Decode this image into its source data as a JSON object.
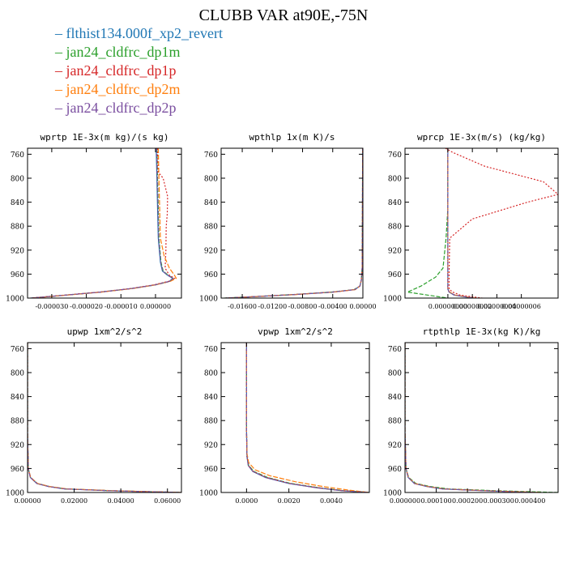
{
  "title": "CLUBB VAR at90E,-75N",
  "legend": [
    {
      "name": "flthist134.000f_xp2_revert",
      "color": "#1f77b4"
    },
    {
      "name": "jan24_cldfrc_dp1m",
      "color": "#2ca02c"
    },
    {
      "name": "jan24_cldfrc_dp1p",
      "color": "#d62728"
    },
    {
      "name": "jan24_cldfrc_dp2m",
      "color": "#ff7f0e"
    },
    {
      "name": "jan24_cldfrc_dp2p",
      "color": "#7b4fa0"
    }
  ],
  "chart_data": [
    {
      "type": "line",
      "title": "wprtp  1E-3x(m kg)/(s kg)",
      "xlim": [
        -3.7e-05,
        7.5e-06
      ],
      "ylim": [
        750,
        1000
      ],
      "y_inverted": true,
      "xticks": [
        -3e-05,
        -2e-05,
        -1e-05,
        0.0
      ],
      "xtick_labels": [
        "-0.000030",
        "-0.000020",
        "-0.000010",
        "0.000000"
      ],
      "yticks": [
        760,
        800,
        840,
        880,
        920,
        960,
        1000
      ],
      "series": [
        {
          "y": [
            750,
            800,
            850,
            900,
            940,
            955,
            962,
            967,
            972,
            978,
            984,
            990,
            995,
            1000
          ],
          "x": [
            2e-07,
            4e-07,
            6e-07,
            8e-07,
            1.4e-06,
            2e-06,
            3.5e-06,
            5e-06,
            4e-06,
            -2e-07,
            -7e-06,
            -1.6e-05,
            -2.6e-05,
            -3.6e-05
          ]
        },
        {
          "y": [
            750,
            800,
            850,
            900,
            940,
            955,
            962,
            967,
            972,
            978,
            984,
            990,
            995,
            1000
          ],
          "x": [
            4e-07,
            6e-07,
            8e-07,
            1e-06,
            1.6e-06,
            2.2e-06,
            3.7e-06,
            5.2e-06,
            4.2e-06,
            1e-07,
            -6.8e-06,
            -1.58e-05,
            -2.58e-05,
            -3.58e-05
          ]
        },
        {
          "y": [
            750,
            790,
            800,
            830,
            860,
            880,
            920,
            950,
            962,
            967,
            972,
            978,
            984,
            990,
            995,
            1000
          ],
          "x": [
            6e-07,
            8e-07,
            2.2e-06,
            3.5e-06,
            3.4e-06,
            3.1e-06,
            3e-06,
            2.8e-06,
            4e-06,
            5.5e-06,
            3.8e-06,
            -5e-07,
            -7.2e-06,
            -1.62e-05,
            -2.62e-05,
            -3.62e-05
          ]
        },
        {
          "y": [
            750,
            800,
            850,
            900,
            930,
            950,
            962,
            967,
            972,
            978,
            984,
            990,
            995,
            1000
          ],
          "x": [
            8e-07,
            1e-06,
            1.2e-06,
            1.4e-06,
            2.5e-06,
            4e-06,
            5.5e-06,
            6e-06,
            4.3e-06,
            0.0,
            -6.6e-06,
            -1.56e-05,
            -2.56e-05,
            -3.56e-05
          ]
        },
        {
          "y": [
            750,
            800,
            850,
            900,
            940,
            955,
            962,
            967,
            972,
            978,
            984,
            990,
            995,
            1000
          ],
          "x": [
            3e-07,
            5e-07,
            7e-07,
            9e-07,
            1.5e-06,
            2.1e-06,
            3.6e-06,
            5.1e-06,
            4.1e-06,
            -1e-07,
            -6.9e-06,
            -1.59e-05,
            -2.59e-05,
            -3.59e-05
          ]
        }
      ]
    },
    {
      "type": "line",
      "title": "wpthlp  1x(m K)/s",
      "xlim": [
        -0.0188,
        0.0
      ],
      "ylim": [
        750,
        1000
      ],
      "y_inverted": true,
      "xticks": [
        -0.016,
        -0.012,
        -0.008,
        -0.004,
        0.0
      ],
      "xtick_labels": [
        "-0.01600",
        "-0.01200",
        "-0.00800",
        "-0.00400",
        "0.00000"
      ],
      "yticks": [
        760,
        800,
        840,
        880,
        920,
        960,
        1000
      ],
      "series": [
        {
          "y": [
            750,
            900,
            950,
            970,
            980,
            986,
            990,
            994,
            997,
            1000
          ],
          "x": [
            -3e-05,
            -6e-05,
            -0.0001,
            -0.0002,
            -0.0004,
            -0.0011,
            -0.004,
            -0.009,
            -0.0135,
            -0.0182
          ]
        },
        {
          "y": [
            750,
            900,
            950,
            970,
            980,
            986,
            990,
            994,
            997,
            1000
          ],
          "x": [
            -3e-05,
            -6e-05,
            -0.0001,
            -0.0002,
            -0.0004,
            -0.0012,
            -0.0042,
            -0.0092,
            -0.0137,
            -0.0184
          ]
        },
        {
          "y": [
            750,
            900,
            950,
            970,
            980,
            986,
            990,
            994,
            997,
            1000
          ],
          "x": [
            -3e-05,
            -6e-05,
            -0.0001,
            -0.0002,
            -0.0004,
            -0.0011,
            -0.0041,
            -0.0091,
            -0.0136,
            -0.0183
          ]
        },
        {
          "y": [
            750,
            900,
            950,
            970,
            980,
            986,
            990,
            994,
            997,
            1000
          ],
          "x": [
            -3e-05,
            -6e-05,
            -0.0001,
            -0.0002,
            -0.0004,
            -0.001,
            -0.0039,
            -0.0089,
            -0.0134,
            -0.0181
          ]
        },
        {
          "y": [
            750,
            900,
            950,
            970,
            980,
            986,
            990,
            994,
            997,
            1000
          ],
          "x": [
            -3e-05,
            -6e-05,
            -0.0001,
            -0.0002,
            -0.0004,
            -0.0011,
            -0.004,
            -0.009,
            -0.0135,
            -0.0182
          ]
        }
      ]
    },
    {
      "type": "line",
      "title": "wprcp  1E-3x(m/s) (kg/kg)",
      "xlim": [
        -3.5e-08,
        9e-08
      ],
      "ylim": [
        750,
        1000
      ],
      "y_inverted": true,
      "xticks": [
        0.0,
        2e-08,
        4e-08,
        6e-08
      ],
      "xtick_labels": [
        "0.00000000",
        "0.00000002",
        "0.00000004",
        "0.00000006"
      ],
      "yticks": [
        760,
        800,
        840,
        880,
        920,
        960,
        1000
      ],
      "series": [
        {
          "y": [
            750,
            850,
            950,
            985,
            990,
            995,
            1000
          ],
          "x": [
            0.0,
            0.0,
            0.0,
            0.0,
            1e-09,
            5e-09,
            2e-08
          ]
        },
        {
          "y": [
            750,
            850,
            900,
            950,
            965,
            980,
            990,
            1000
          ],
          "x": [
            0.0,
            0.0,
            -1.5e-09,
            -4e-09,
            -1e-08,
            -2.2e-08,
            -3.3e-08,
            0.0
          ]
        },
        {
          "y": [
            750,
            757,
            780,
            806,
            827,
            840,
            868,
            900,
            960,
            985,
            990,
            995,
            1000
          ],
          "x": [
            -2e-09,
            4e-09,
            3e-08,
            7.8e-08,
            9e-08,
            6.5e-08,
            2e-08,
            1.5e-09,
            1e-09,
            1e-09,
            4e-09,
            1e-08,
            2.8e-08
          ]
        },
        {
          "y": [
            750,
            850,
            950,
            985,
            990,
            995,
            1000
          ],
          "x": [
            0.0,
            0.0,
            0.0,
            0.0,
            1.5e-09,
            6e-09,
            2.2e-08
          ]
        },
        {
          "y": [
            750,
            850,
            950,
            985,
            990,
            995,
            1000
          ],
          "x": [
            0.0,
            0.0,
            0.0,
            0.0,
            1e-09,
            5.5e-09,
            2.1e-08
          ]
        }
      ]
    },
    {
      "type": "line",
      "title": "upwp  1xm^2/s^2",
      "xlim": [
        0.0,
        0.066
      ],
      "ylim": [
        750,
        1000
      ],
      "y_inverted": true,
      "xticks": [
        0.0,
        0.02,
        0.04,
        0.06
      ],
      "xtick_labels": [
        "0.00000",
        "0.02000",
        "0.04000",
        "0.06000"
      ],
      "yticks": [
        760,
        800,
        840,
        880,
        920,
        960,
        1000
      ],
      "series": [
        {
          "y": [
            750,
            900,
            960,
            975,
            985,
            990,
            994,
            997,
            1000
          ],
          "x": [
            0.0,
            0.0,
            0.0003,
            0.0012,
            0.004,
            0.009,
            0.016,
            0.035,
            0.066
          ]
        },
        {
          "y": [
            750,
            900,
            960,
            975,
            985,
            990,
            994,
            997,
            1000
          ],
          "x": [
            0.0,
            0.0,
            0.0003,
            0.0013,
            0.0042,
            0.0092,
            0.0165,
            0.036,
            0.066
          ]
        },
        {
          "y": [
            750,
            900,
            960,
            975,
            985,
            990,
            994,
            997,
            1000
          ],
          "x": [
            0.0,
            0.0,
            0.0003,
            0.0012,
            0.0041,
            0.0091,
            0.0162,
            0.0355,
            0.066
          ]
        },
        {
          "y": [
            750,
            900,
            960,
            975,
            985,
            990,
            994,
            997,
            1000
          ],
          "x": [
            0.0,
            0.0,
            0.0003,
            0.0014,
            0.0043,
            0.0095,
            0.017,
            0.037,
            0.066
          ]
        },
        {
          "y": [
            750,
            900,
            960,
            975,
            985,
            990,
            994,
            997,
            1000
          ],
          "x": [
            0.0,
            0.0,
            0.0003,
            0.0012,
            0.004,
            0.009,
            0.016,
            0.035,
            0.066
          ]
        }
      ]
    },
    {
      "type": "line",
      "title": "vpwp  1xm^2/s^2",
      "xlim": [
        -0.0012,
        0.0058
      ],
      "ylim": [
        750,
        1000
      ],
      "y_inverted": true,
      "xticks": [
        0.0,
        0.002,
        0.004
      ],
      "xtick_labels": [
        "0.0000",
        "0.0020",
        "0.0040"
      ],
      "yticks": [
        760,
        800,
        840,
        880,
        920,
        960,
        1000
      ],
      "series": [
        {
          "y": [
            750,
            900,
            940,
            955,
            965,
            975,
            985,
            992,
            997,
            1000
          ],
          "x": [
            0.0,
            0.0,
            2e-05,
            8e-05,
            0.0003,
            0.0009,
            0.002,
            0.0033,
            0.0045,
            0.0058
          ]
        },
        {
          "y": [
            750,
            900,
            940,
            955,
            965,
            975,
            985,
            992,
            997,
            1000
          ],
          "x": [
            0.0,
            0.0,
            2e-05,
            0.0001,
            0.00035,
            0.001,
            0.0021,
            0.0034,
            0.0046,
            0.0058
          ]
        },
        {
          "y": [
            750,
            900,
            940,
            955,
            965,
            975,
            985,
            992,
            997,
            1000
          ],
          "x": [
            0.0,
            0.0,
            2e-05,
            9e-05,
            0.00032,
            0.00095,
            0.00205,
            0.00335,
            0.00455,
            0.0058
          ]
        },
        {
          "y": [
            750,
            900,
            935,
            950,
            962,
            972,
            982,
            990,
            996,
            1000
          ],
          "x": [
            0.0,
            0.0,
            2e-05,
            0.0001,
            0.0004,
            0.0011,
            0.0023,
            0.0036,
            0.0048,
            0.0058
          ]
        },
        {
          "y": [
            750,
            900,
            940,
            955,
            965,
            975,
            985,
            992,
            997,
            1000
          ],
          "x": [
            0.0,
            0.0,
            2e-05,
            8e-05,
            0.0003,
            0.0009,
            0.002,
            0.0033,
            0.0045,
            0.0058
          ]
        }
      ]
    },
    {
      "type": "line",
      "title": "rtpthlp  1E-3x(kg K)/kg",
      "xlim": [
        0.0,
        0.00049
      ],
      "ylim": [
        750,
        1000
      ],
      "y_inverted": true,
      "xticks": [
        0.0,
        0.0001,
        0.0002,
        0.0003,
        0.0004
      ],
      "xtick_labels": [
        "0.000000",
        "0.000100",
        "0.000200",
        "0.000300",
        "0.000400"
      ],
      "yticks": [
        760,
        800,
        840,
        880,
        920,
        960,
        1000
      ],
      "series": [
        {
          "y": [
            750,
            900,
            960,
            975,
            985,
            990,
            994,
            997,
            1000
          ],
          "x": [
            0.0,
            0.0,
            3e-06,
            1e-05,
            3e-05,
            7e-05,
            0.00012,
            0.00025,
            0.00042
          ]
        },
        {
          "y": [
            750,
            900,
            960,
            975,
            985,
            990,
            994,
            997,
            1000
          ],
          "x": [
            0.0,
            0.0,
            3e-06,
            1.2e-05,
            3.5e-05,
            8e-05,
            0.00014,
            0.00029,
            0.00049
          ]
        },
        {
          "y": [
            750,
            900,
            960,
            975,
            985,
            990,
            994,
            997,
            1000
          ],
          "x": [
            0.0,
            0.0,
            3e-06,
            1.1e-05,
            3.2e-05,
            7.3e-05,
            0.000125,
            0.00026,
            0.00044
          ]
        },
        {
          "y": [
            750,
            900,
            960,
            975,
            985,
            990,
            994,
            997,
            1000
          ],
          "x": [
            0.0,
            0.0,
            3e-06,
            1.1e-05,
            3.1e-05,
            7.2e-05,
            0.000123,
            0.000255,
            0.00043
          ]
        },
        {
          "y": [
            750,
            900,
            960,
            975,
            985,
            990,
            994,
            997,
            1000
          ],
          "x": [
            0.0,
            0.0,
            3e-06,
            1e-05,
            3e-05,
            7e-05,
            0.00012,
            0.00025,
            0.00042
          ]
        }
      ]
    }
  ]
}
